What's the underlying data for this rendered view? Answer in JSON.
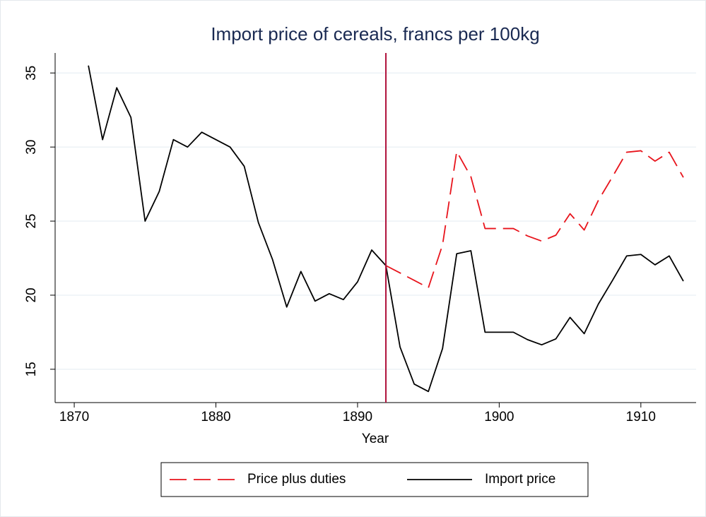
{
  "chart_data": {
    "type": "line",
    "title": "Import price of cereals, francs per 100kg",
    "x_label": "Year",
    "x": [
      1871,
      1872,
      1873,
      1874,
      1875,
      1876,
      1877,
      1878,
      1879,
      1880,
      1881,
      1882,
      1883,
      1884,
      1885,
      1886,
      1887,
      1888,
      1889,
      1890,
      1891,
      1892,
      1893,
      1894,
      1895,
      1896,
      1897,
      1898,
      1899,
      1900,
      1901,
      1902,
      1903,
      1904,
      1905,
      1906,
      1907,
      1908,
      1909,
      1910,
      1911,
      1912,
      1913
    ],
    "series": [
      {
        "name": "Price plus duties",
        "color": "#e8141c",
        "dashed": true,
        "values": [
          null,
          null,
          null,
          null,
          null,
          null,
          null,
          null,
          null,
          null,
          null,
          null,
          null,
          null,
          null,
          null,
          null,
          null,
          null,
          null,
          null,
          22,
          21.5,
          21,
          20.5,
          23.4,
          29.7,
          28,
          24.5,
          24.5,
          24.5,
          24,
          23.65,
          24.05,
          25.5,
          24.4,
          26.4,
          28,
          29.65,
          29.75,
          29.05,
          29.65,
          27.95
        ]
      },
      {
        "name": "Import price",
        "color": "#000000",
        "dashed": false,
        "values": [
          35.5,
          30.5,
          34,
          32,
          25,
          27,
          30.5,
          30,
          31,
          30.5,
          30,
          28.7,
          24.9,
          22.4,
          19.2,
          21.6,
          19.6,
          20.1,
          19.7,
          20.9,
          23.05,
          22,
          16.5,
          14,
          13.5,
          16.4,
          22.8,
          23,
          17.5,
          17.5,
          17.5,
          17,
          16.65,
          17.05,
          18.5,
          17.4,
          19.4,
          21,
          22.65,
          22.75,
          22.05,
          22.65,
          20.95
        ]
      }
    ],
    "vline": 1892,
    "vline_color": "#b0123c",
    "xlim": [
      1868.65,
      1913.9
    ],
    "xticks": [
      1870,
      1880,
      1890,
      1900,
      1910
    ],
    "ylim": [
      12.75,
      36.35
    ],
    "yticks": [
      15,
      20,
      25,
      30,
      35
    ],
    "grid": true,
    "legend": "bottom"
  }
}
